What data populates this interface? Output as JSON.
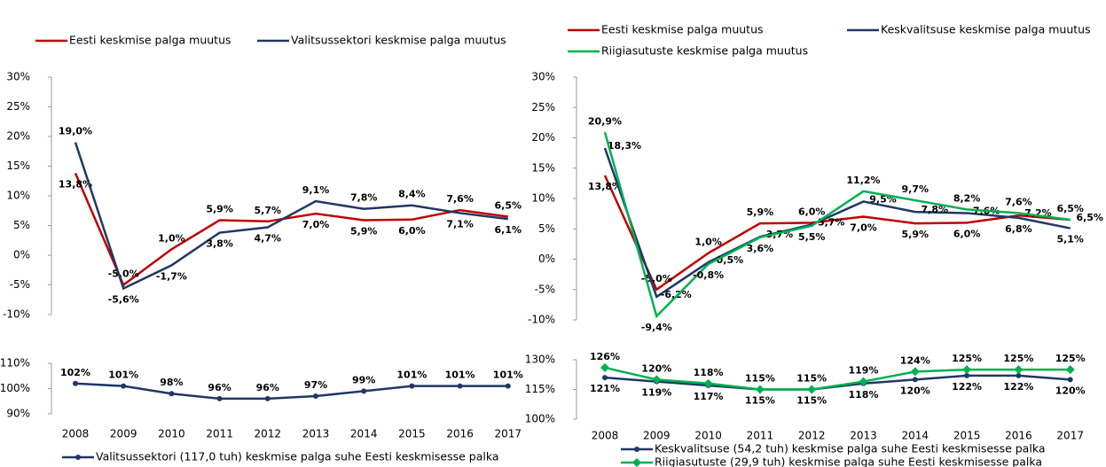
{
  "chart_data": [
    {
      "type": "line",
      "ylim": [
        -10,
        30
      ],
      "yticks": [
        {
          "value": -10,
          "label": "-10%"
        },
        {
          "value": -5,
          "label": "-5%"
        },
        {
          "value": 0,
          "label": "0%"
        },
        {
          "value": 5,
          "label": "5%"
        },
        {
          "value": 10,
          "label": "10%"
        },
        {
          "value": 15,
          "label": "15%"
        },
        {
          "value": 20,
          "label": "20%"
        },
        {
          "value": 25,
          "label": "25%"
        },
        {
          "value": 30,
          "label": "30%"
        }
      ],
      "series": [
        {
          "name": "Eesti keskmise palga muutus",
          "color": "#c00000",
          "values": [
            13.8,
            -5.0,
            1.0,
            5.9,
            5.7,
            7.0,
            5.9,
            6.0,
            7.6,
            6.5
          ],
          "value_labels": [
            "13,8%",
            "-5,0%",
            "1,0%",
            "5,9%",
            "5,7%",
            "7,0%",
            "5,9%",
            "6,0%",
            "7,6%",
            "6,5%"
          ]
        },
        {
          "name": "Valitsussektori keskmise palga muutus",
          "color": "#1f3864",
          "values": [
            19.0,
            -5.6,
            -1.7,
            3.8,
            4.7,
            9.1,
            7.8,
            8.4,
            7.1,
            6.1
          ],
          "value_labels": [
            "19,0%",
            "-5,6%",
            "-1,7%",
            "3,8%",
            "4,7%",
            "9,1%",
            "7,8%",
            "8,4%",
            "7,1%",
            "6,1%"
          ]
        }
      ]
    },
    {
      "type": "line",
      "categories": [
        "2008",
        "2009",
        "2010",
        "2011",
        "2012",
        "2013",
        "2014",
        "2015",
        "2016",
        "2017"
      ],
      "ylim": [
        90,
        110
      ],
      "yticks": [
        {
          "value": 90,
          "label": "90%"
        },
        {
          "value": 100,
          "label": "100%"
        },
        {
          "value": 110,
          "label": "110%"
        }
      ],
      "series": [
        {
          "name": "Valitsussektori (117,0 tuh) keskmise palga suhe Eesti keskmisesse palka",
          "color": "#1f3864",
          "marker": "circle",
          "values": [
            102,
            101,
            98,
            96,
            96,
            97,
            99,
            101,
            101,
            101
          ],
          "value_labels": [
            "102%",
            "101%",
            "98%",
            "96%",
            "96%",
            "97%",
            "99%",
            "101%",
            "101%",
            "101%"
          ]
        }
      ]
    },
    {
      "type": "line",
      "ylim": [
        -10,
        30
      ],
      "yticks": [
        {
          "value": -10,
          "label": "-10%"
        },
        {
          "value": -5,
          "label": "-5%"
        },
        {
          "value": 0,
          "label": "0%"
        },
        {
          "value": 5,
          "label": "5%"
        },
        {
          "value": 10,
          "label": "10%"
        },
        {
          "value": 15,
          "label": "15%"
        },
        {
          "value": 20,
          "label": "20%"
        },
        {
          "value": 25,
          "label": "25%"
        },
        {
          "value": 30,
          "label": "30%"
        }
      ],
      "series": [
        {
          "name": "Eesti keskmise palga muutus",
          "color": "#c00000",
          "values": [
            13.8,
            -5.0,
            1.0,
            5.9,
            6.0,
            7.0,
            5.9,
            6.0,
            7.2,
            6.5
          ],
          "value_labels": [
            "13,8%",
            "-5,0%",
            "1,0%",
            "5,9%",
            "6,0%",
            "7,0%",
            "5,9%",
            "6,0%",
            "7,2%",
            "6,5%"
          ]
        },
        {
          "name": "Keskvalitsuse keskmise palga muutus",
          "color": "#1f3864",
          "values": [
            18.3,
            -6.2,
            -0.5,
            3.7,
            5.7,
            9.5,
            7.8,
            7.6,
            6.8,
            5.1
          ],
          "value_labels": [
            "18,3%",
            "-6,2%",
            "-0,5%",
            "3,7%",
            "5,7%",
            "9,5%",
            "7,8%",
            "7,6%",
            "6,8%",
            "5,1%"
          ]
        },
        {
          "name": "Riigiasutuste keskmise palga muutus",
          "color": "#00b050",
          "values": [
            20.9,
            -9.4,
            -0.8,
            3.6,
            5.5,
            11.2,
            9.7,
            8.2,
            7.6,
            6.5
          ],
          "value_labels": [
            "20,9%",
            "-9,4%",
            "-0,8%",
            "3,6%",
            "5,5%",
            "11,2%",
            "9,7%",
            "8,2%",
            "7,6%",
            "6,5%"
          ]
        }
      ]
    },
    {
      "type": "line",
      "categories": [
        "2008",
        "2009",
        "2010",
        "2011",
        "2012",
        "2013",
        "2014",
        "2015",
        "2016",
        "2017"
      ],
      "ylim": [
        100,
        130
      ],
      "yticks": [
        {
          "value": 100,
          "label": "100%"
        },
        {
          "value": 115,
          "label": "115%"
        },
        {
          "value": 130,
          "label": "130%"
        }
      ],
      "series": [
        {
          "name": "Keskvalitsuse (54,2 tuh) keskmise palga suhe Eesti keskmisesse palka",
          "color": "#1f3864",
          "marker": "circle",
          "values": [
            121,
            119,
            117,
            115,
            115,
            118,
            120,
            122,
            122,
            120
          ],
          "value_labels": [
            "121%",
            "119%",
            "117%",
            "115%",
            "115%",
            "118%",
            "120%",
            "122%",
            "122%",
            "120%"
          ]
        },
        {
          "name": "Riigiasutuste (29,9 tuh) keskmise palga suhe Eesti keskmisesse palka",
          "color": "#00b050",
          "marker": "diamond",
          "values": [
            126,
            120,
            118,
            115,
            115,
            119,
            124,
            125,
            125,
            125
          ],
          "value_labels": [
            "126%",
            "120%",
            "118%",
            "115%",
            "115%",
            "119%",
            "124%",
            "125%",
            "125%",
            "125%"
          ]
        }
      ]
    }
  ]
}
